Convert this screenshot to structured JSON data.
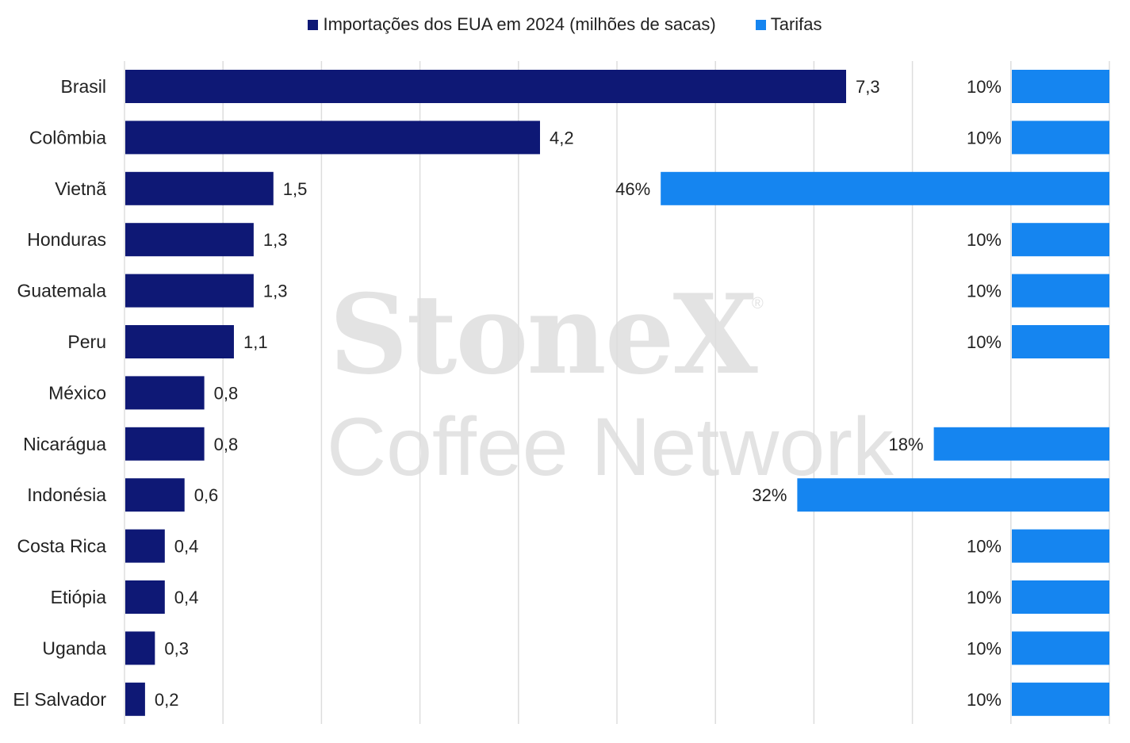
{
  "chart_data": {
    "type": "bar",
    "orientation": "horizontal",
    "categories": [
      "Brasil",
      "Colômbia",
      "Vietnã",
      "Honduras",
      "Guatemala",
      "Peru",
      "México",
      "Nicarágua",
      "Indonésia",
      "Costa Rica",
      "Etiópia",
      "Uganda",
      "El Salvador"
    ],
    "series": [
      {
        "name": "Importações dos EUA em 2024 (milhões de sacas)",
        "color": "#0e1875",
        "values": [
          7.3,
          4.2,
          1.5,
          1.3,
          1.3,
          1.1,
          0.8,
          0.8,
          0.6,
          0.4,
          0.4,
          0.3,
          0.2
        ],
        "labels": [
          "7,3",
          "4,2",
          "1,5",
          "1,3",
          "1,3",
          "1,1",
          "0,8",
          "0,8",
          "0,6",
          "0,4",
          "0,4",
          "0,3",
          "0,2"
        ]
      },
      {
        "name": "Tarifas",
        "color": "#1585f0",
        "values": [
          10,
          10,
          46,
          10,
          10,
          10,
          null,
          18,
          32,
          10,
          10,
          10,
          10
        ],
        "labels": [
          "10%",
          "10%",
          "46%",
          "10%",
          "10%",
          "10%",
          "",
          "18%",
          "32%",
          "10%",
          "10%",
          "10%",
          "10%"
        ]
      }
    ],
    "legend_position": "top-center",
    "grid": true
  },
  "watermark": {
    "brand": "StoneX",
    "registered": "®",
    "subtitle": "Coffee Network"
  }
}
